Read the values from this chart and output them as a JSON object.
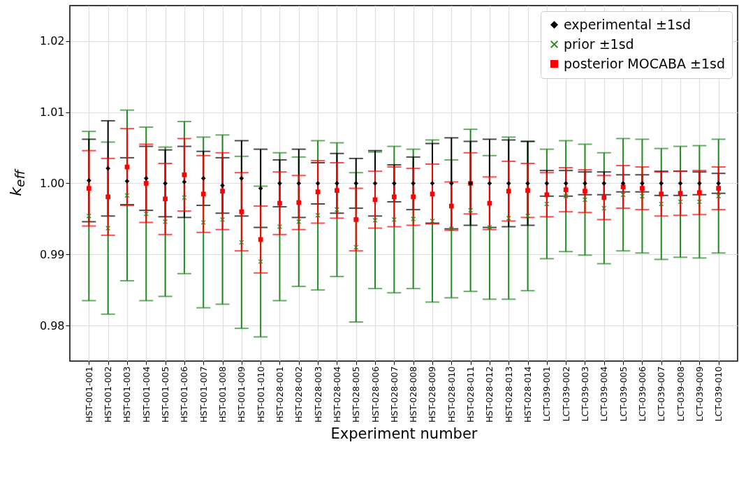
{
  "chart_data": {
    "type": "scatter",
    "xlabel": "Experiment number",
    "ylabel": "k$_{eff}$",
    "categories": [
      "HST-001-001",
      "HST-001-002",
      "HST-001-003",
      "HST-001-004",
      "HST-001-005",
      "HST-001-006",
      "HST-001-007",
      "HST-001-008",
      "HST-001-009",
      "HST-001-010",
      "HST-028-001",
      "HST-028-002",
      "HST-028-003",
      "HST-028-004",
      "HST-028-005",
      "HST-028-006",
      "HST-028-007",
      "HST-028-008",
      "HST-028-009",
      "HST-028-010",
      "HST-028-011",
      "HST-028-012",
      "HST-028-013",
      "HST-028-014",
      "LCT-039-001",
      "LCT-039-002",
      "LCT-039-003",
      "LCT-039-004",
      "LCT-039-005",
      "LCT-039-006",
      "LCT-039-007",
      "LCT-039-008",
      "LCT-039-009",
      "LCT-039-010"
    ],
    "series": [
      {
        "name": "experimental ±1sd",
        "color": "#000000",
        "marker": "diamond",
        "values": [
          1.0004,
          1.0021,
          1.0003,
          1.0007,
          1.0,
          1.0002,
          1.0007,
          0.9997,
          1.0007,
          0.9993,
          1.0,
          1.0,
          1.0,
          1.0,
          1.0,
          1.0,
          1.0,
          1.0,
          1.0,
          1.0,
          1.0,
          1.0,
          1.0,
          1.0,
          1.0,
          1.0,
          1.0,
          1.0,
          1.0,
          1.0,
          1.0,
          1.0,
          1.0,
          1.0
        ],
        "errors": [
          0.0058,
          0.0067,
          0.0033,
          0.0045,
          0.0047,
          0.005,
          0.0038,
          0.0039,
          0.0053,
          0.0055,
          0.0033,
          0.0048,
          0.0029,
          0.0042,
          0.0035,
          0.0046,
          0.0026,
          0.0037,
          0.0056,
          0.0064,
          0.0059,
          0.0062,
          0.0061,
          0.0059,
          0.0018,
          0.0018,
          0.0016,
          0.0016,
          0.0012,
          0.0012,
          0.0017,
          0.0017,
          0.0016,
          0.0014
        ]
      },
      {
        "name": "prior ±1sd",
        "color": "#228b22",
        "marker": "cross",
        "values": [
          0.9954,
          0.9937,
          0.9983,
          0.9957,
          0.9946,
          0.998,
          0.9945,
          0.9949,
          0.9917,
          0.989,
          0.9939,
          0.9946,
          0.9955,
          0.9963,
          0.991,
          0.9948,
          0.9949,
          0.995,
          0.9947,
          0.9936,
          0.9962,
          0.9938,
          0.9951,
          0.9954,
          0.9971,
          0.9982,
          0.9977,
          0.9965,
          0.9984,
          0.9982,
          0.9971,
          0.9974,
          0.9974,
          0.9982
        ],
        "errors": [
          0.0119,
          0.0121,
          0.012,
          0.0122,
          0.0105,
          0.0107,
          0.012,
          0.0119,
          0.0121,
          0.0106,
          0.0104,
          0.0091,
          0.0105,
          0.0094,
          0.0105,
          0.0096,
          0.0103,
          0.0098,
          0.0114,
          0.0097,
          0.0114,
          0.0101,
          0.0114,
          0.0105,
          0.0077,
          0.0078,
          0.0078,
          0.0078,
          0.0079,
          0.008,
          0.0078,
          0.0078,
          0.0079,
          0.008
        ]
      },
      {
        "name": "posterior MOCABA ±1sd",
        "color": "#ff0000",
        "marker": "square",
        "values": [
          0.9993,
          0.9981,
          1.0023,
          1.0,
          0.9978,
          1.0012,
          0.9985,
          0.9989,
          0.996,
          0.9921,
          0.9972,
          0.9973,
          0.9988,
          0.999,
          0.9949,
          0.9977,
          0.9981,
          0.9981,
          0.9985,
          0.9968,
          1.0,
          0.9972,
          0.9989,
          0.999,
          0.9984,
          0.9991,
          0.9989,
          0.998,
          0.9995,
          0.9993,
          0.9985,
          0.9986,
          0.9987,
          0.9993
        ],
        "errors": [
          0.0053,
          0.0054,
          0.0054,
          0.0055,
          0.005,
          0.0051,
          0.0054,
          0.0054,
          0.0055,
          0.0047,
          0.0044,
          0.0038,
          0.0044,
          0.0039,
          0.0044,
          0.004,
          0.0042,
          0.004,
          0.0042,
          0.0034,
          0.0043,
          0.0037,
          0.0042,
          0.0038,
          0.0031,
          0.0031,
          0.003,
          0.0031,
          0.003,
          0.003,
          0.0031,
          0.0031,
          0.0031,
          0.003
        ]
      }
    ],
    "ylim": [
      0.975,
      1.025
    ],
    "yticks": [
      0.98,
      0.99,
      {
        "value": 1,
        "label": "1.00"
      },
      1.01,
      1.02
    ],
    "grid": true,
    "legend": "top right"
  }
}
